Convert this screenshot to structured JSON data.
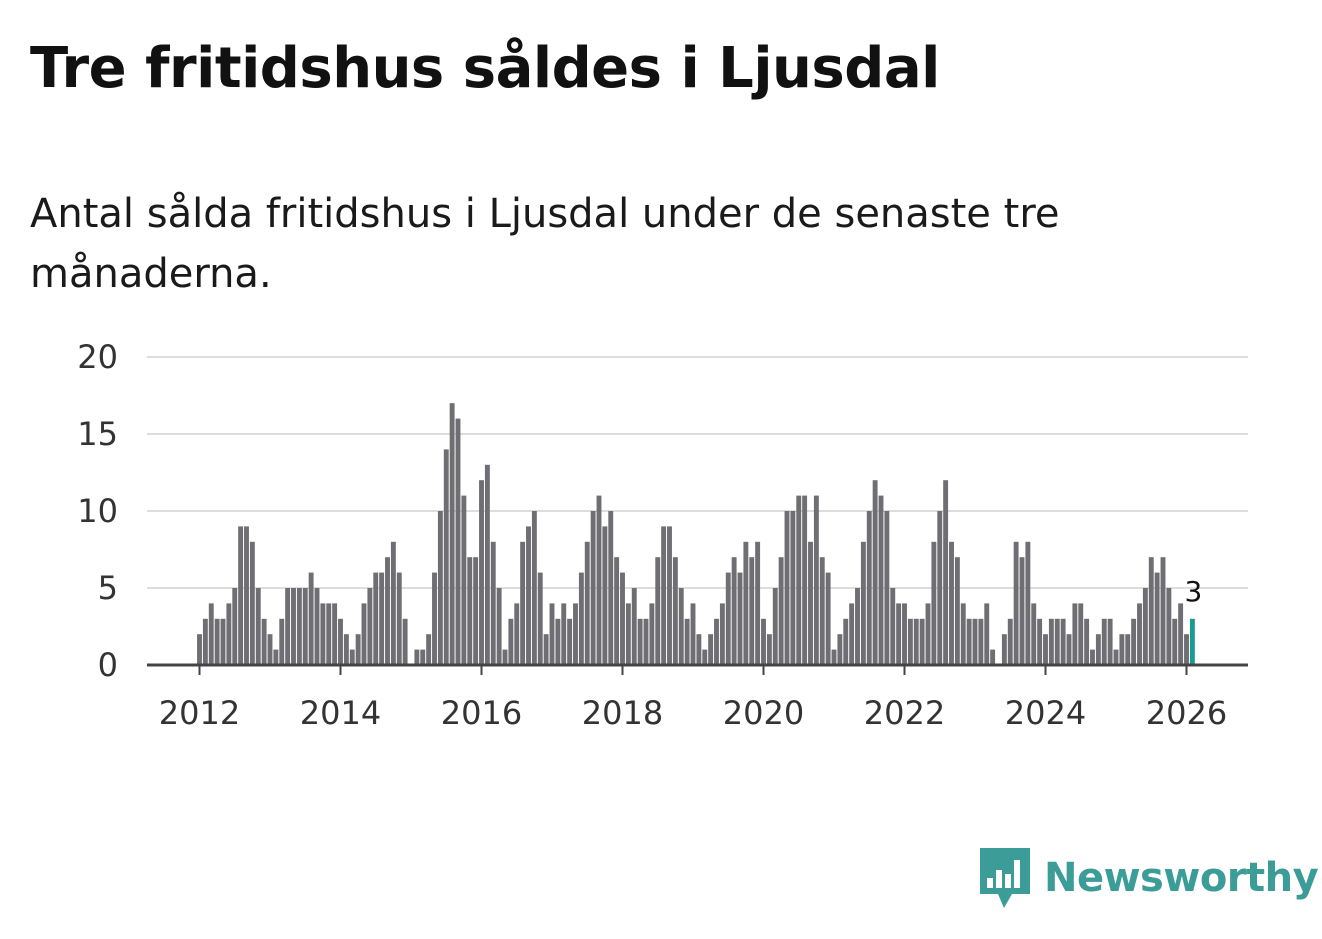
{
  "title": "Tre fritidshus såldes i Ljusdal",
  "subtitle": "Antal sålda fritidshus i Ljusdal under de senaste tre månaderna.",
  "brand": {
    "name": "Newsworthy",
    "icon": "bar-chart-speech-bubble-icon"
  },
  "colors": {
    "bar": "#6e6e73",
    "highlight": "#1a9a90",
    "grid": "#dddddd",
    "baseline": "#444444",
    "brand": "#3b9c98"
  },
  "chart_data": {
    "type": "bar",
    "title": "Tre fritidshus såldes i Ljusdal",
    "xlabel": "",
    "ylabel": "",
    "ylim": [
      0,
      20
    ],
    "yticks": [
      "0",
      "5",
      "10",
      "15",
      "20"
    ],
    "xticks": [
      "2012",
      "2014",
      "2016",
      "2018",
      "2020",
      "2022",
      "2024",
      "2026"
    ],
    "grid": true,
    "start": "2012-01",
    "frequency": "monthly (rolling three-month total)",
    "values": [
      2,
      3,
      4,
      3,
      3,
      4,
      5,
      9,
      9,
      8,
      5,
      3,
      2,
      1,
      3,
      5,
      5,
      5,
      5,
      6,
      5,
      4,
      4,
      4,
      3,
      2,
      1,
      2,
      4,
      5,
      6,
      6,
      7,
      8,
      6,
      3,
      0,
      1,
      1,
      2,
      6,
      10,
      14,
      17,
      16,
      11,
      7,
      7,
      12,
      13,
      8,
      5,
      1,
      3,
      4,
      8,
      9,
      10,
      6,
      2,
      4,
      3,
      4,
      3,
      4,
      6,
      8,
      10,
      11,
      9,
      10,
      7,
      6,
      4,
      5,
      3,
      3,
      4,
      7,
      9,
      9,
      7,
      5,
      3,
      4,
      2,
      1,
      2,
      3,
      4,
      6,
      7,
      6,
      8,
      7,
      8,
      3,
      2,
      5,
      7,
      10,
      10,
      11,
      11,
      8,
      11,
      7,
      6,
      1,
      2,
      3,
      4,
      5,
      8,
      10,
      12,
      11,
      10,
      5,
      4,
      4,
      3,
      3,
      3,
      4,
      8,
      10,
      12,
      8,
      7,
      4,
      3,
      3,
      3,
      4,
      1,
      0,
      2,
      3,
      8,
      7,
      8,
      4,
      3,
      2,
      3,
      3,
      3,
      2,
      4,
      4,
      3,
      1,
      2,
      3,
      3,
      1,
      2,
      2,
      3,
      4,
      5,
      7,
      6,
      7,
      5,
      3,
      4,
      2,
      3
    ],
    "highlight_index": 169,
    "highlight_label": "3"
  }
}
